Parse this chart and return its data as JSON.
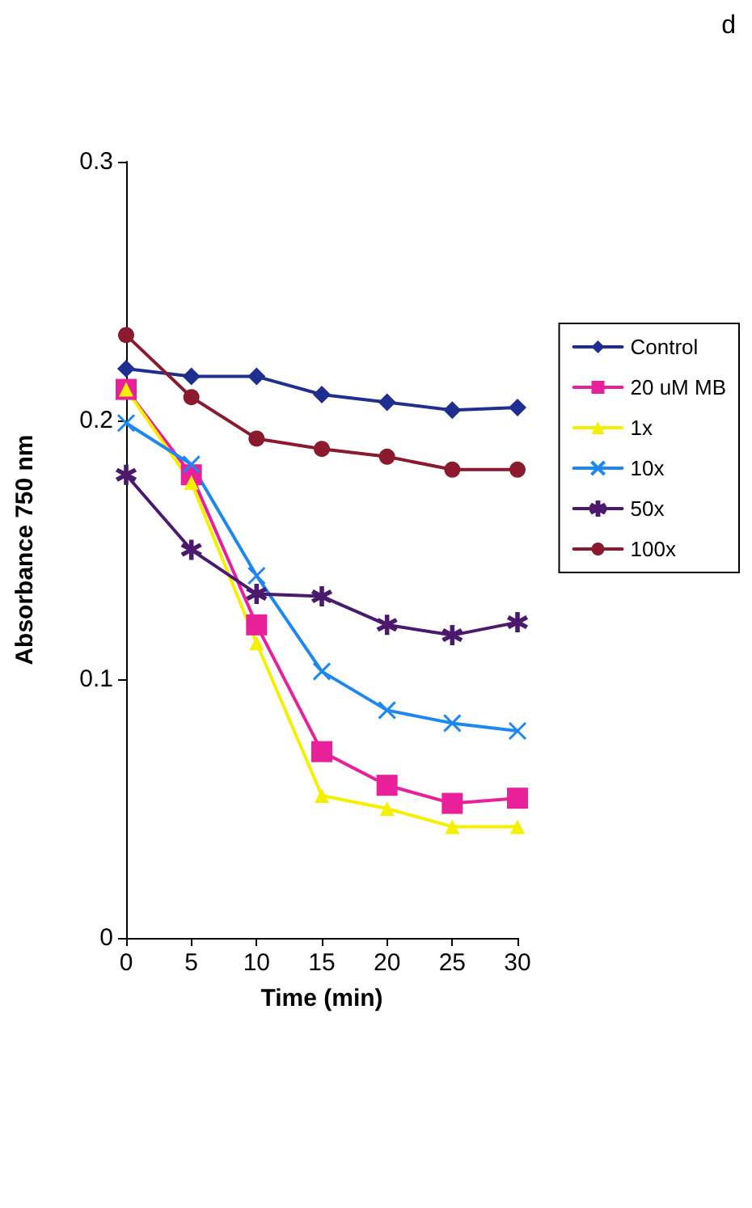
{
  "chart_data": {
    "type": "line",
    "xlabel": "Time (min)",
    "ylabel": "Absorbance 750 nm",
    "annotations": [
      "d"
    ],
    "x": [
      0,
      5,
      10,
      15,
      20,
      25,
      30
    ],
    "xlim": [
      0,
      30
    ],
    "xticks": [
      0,
      5,
      10,
      15,
      20,
      25,
      30
    ],
    "ylim": [
      0,
      0.3
    ],
    "yticks": [
      0,
      0.1,
      0.2,
      0.3
    ],
    "grid": false,
    "legend": "right",
    "series": [
      {
        "name": "Control",
        "color": "#1f2f8f",
        "marker": "diamond",
        "values": [
          0.22,
          0.217,
          0.217,
          0.21,
          0.207,
          0.204,
          0.205
        ]
      },
      {
        "name": "20 uM MB",
        "color": "#e8209a",
        "marker": "square",
        "values": [
          0.212,
          0.179,
          0.121,
          0.072,
          0.059,
          0.052,
          0.054
        ]
      },
      {
        "name": "1x",
        "color": "#f5f000",
        "marker": "triangle",
        "values": [
          0.212,
          0.176,
          0.114,
          0.055,
          0.05,
          0.043,
          0.043
        ]
      },
      {
        "name": "10x",
        "color": "#1e88f0",
        "marker": "cross",
        "values": [
          0.199,
          0.183,
          0.14,
          0.103,
          0.088,
          0.083,
          0.08
        ]
      },
      {
        "name": "50x",
        "color": "#4b1a6e",
        "marker": "star",
        "values": [
          0.179,
          0.15,
          0.133,
          0.132,
          0.121,
          0.117,
          0.122
        ]
      },
      {
        "name": "100x",
        "color": "#8b1a2e",
        "marker": "circle",
        "values": [
          0.233,
          0.209,
          0.193,
          0.189,
          0.186,
          0.181,
          0.181
        ]
      }
    ]
  }
}
